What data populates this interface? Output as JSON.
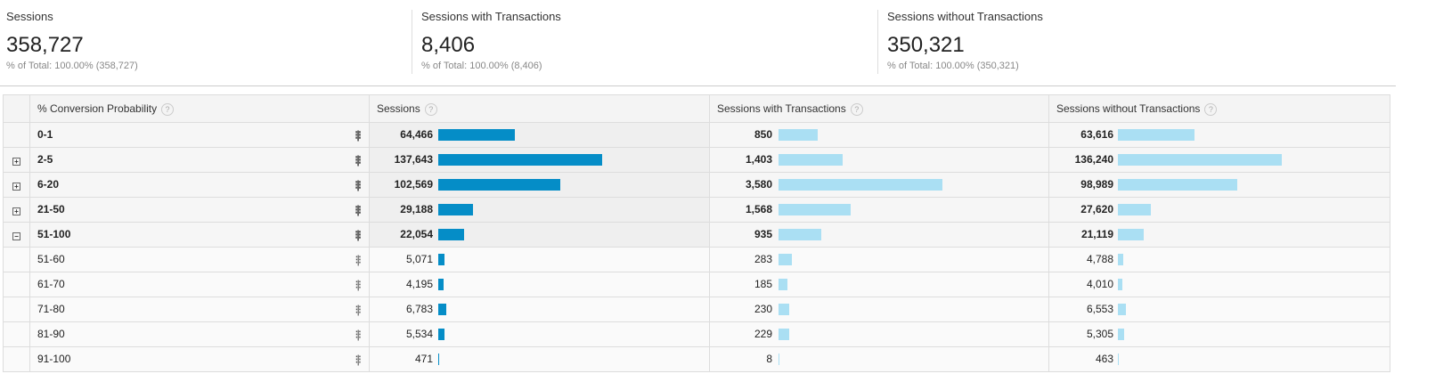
{
  "summary": [
    {
      "label": "Sessions",
      "value": "358,727",
      "sub": "% of Total: 100.00% (358,727)"
    },
    {
      "label": "Sessions with Transactions",
      "value": "8,406",
      "sub": "% of Total: 100.00% (8,406)"
    },
    {
      "label": "Sessions without Transactions",
      "value": "350,321",
      "sub": "% of Total: 100.00% (350,321)"
    }
  ],
  "table": {
    "headers": [
      "% Conversion Probability",
      "Sessions",
      "Sessions with Transactions",
      "Sessions without Transactions"
    ],
    "help_icon": "?",
    "colors": {
      "sessions_bar": "#058dc7",
      "other_bar": "#aadff3"
    },
    "rows": [
      {
        "label": "0-1",
        "type": "parent",
        "expander": "",
        "v": [
          "64,466",
          "850",
          "63,616"
        ]
      },
      {
        "label": "2-5",
        "type": "parent",
        "expander": "+",
        "v": [
          "137,643",
          "1,403",
          "136,240"
        ]
      },
      {
        "label": "6-20",
        "type": "parent",
        "expander": "+",
        "v": [
          "102,569",
          "3,580",
          "98,989"
        ]
      },
      {
        "label": "21-50",
        "type": "parent",
        "expander": "+",
        "v": [
          "29,188",
          "1,568",
          "27,620"
        ]
      },
      {
        "label": "51-100",
        "type": "parent",
        "expander": "−",
        "v": [
          "22,054",
          "935",
          "21,119"
        ]
      },
      {
        "label": "51-60",
        "type": "child",
        "expander": "",
        "v": [
          "5,071",
          "283",
          "4,788"
        ]
      },
      {
        "label": "61-70",
        "type": "child",
        "expander": "",
        "v": [
          "4,195",
          "185",
          "4,010"
        ]
      },
      {
        "label": "71-80",
        "type": "child",
        "expander": "",
        "v": [
          "6,783",
          "230",
          "6,553"
        ]
      },
      {
        "label": "81-90",
        "type": "child",
        "expander": "",
        "v": [
          "5,534",
          "229",
          "5,305"
        ]
      },
      {
        "label": "91-100",
        "type": "child",
        "expander": "",
        "v": [
          "471",
          "8",
          "463"
        ]
      }
    ]
  }
}
